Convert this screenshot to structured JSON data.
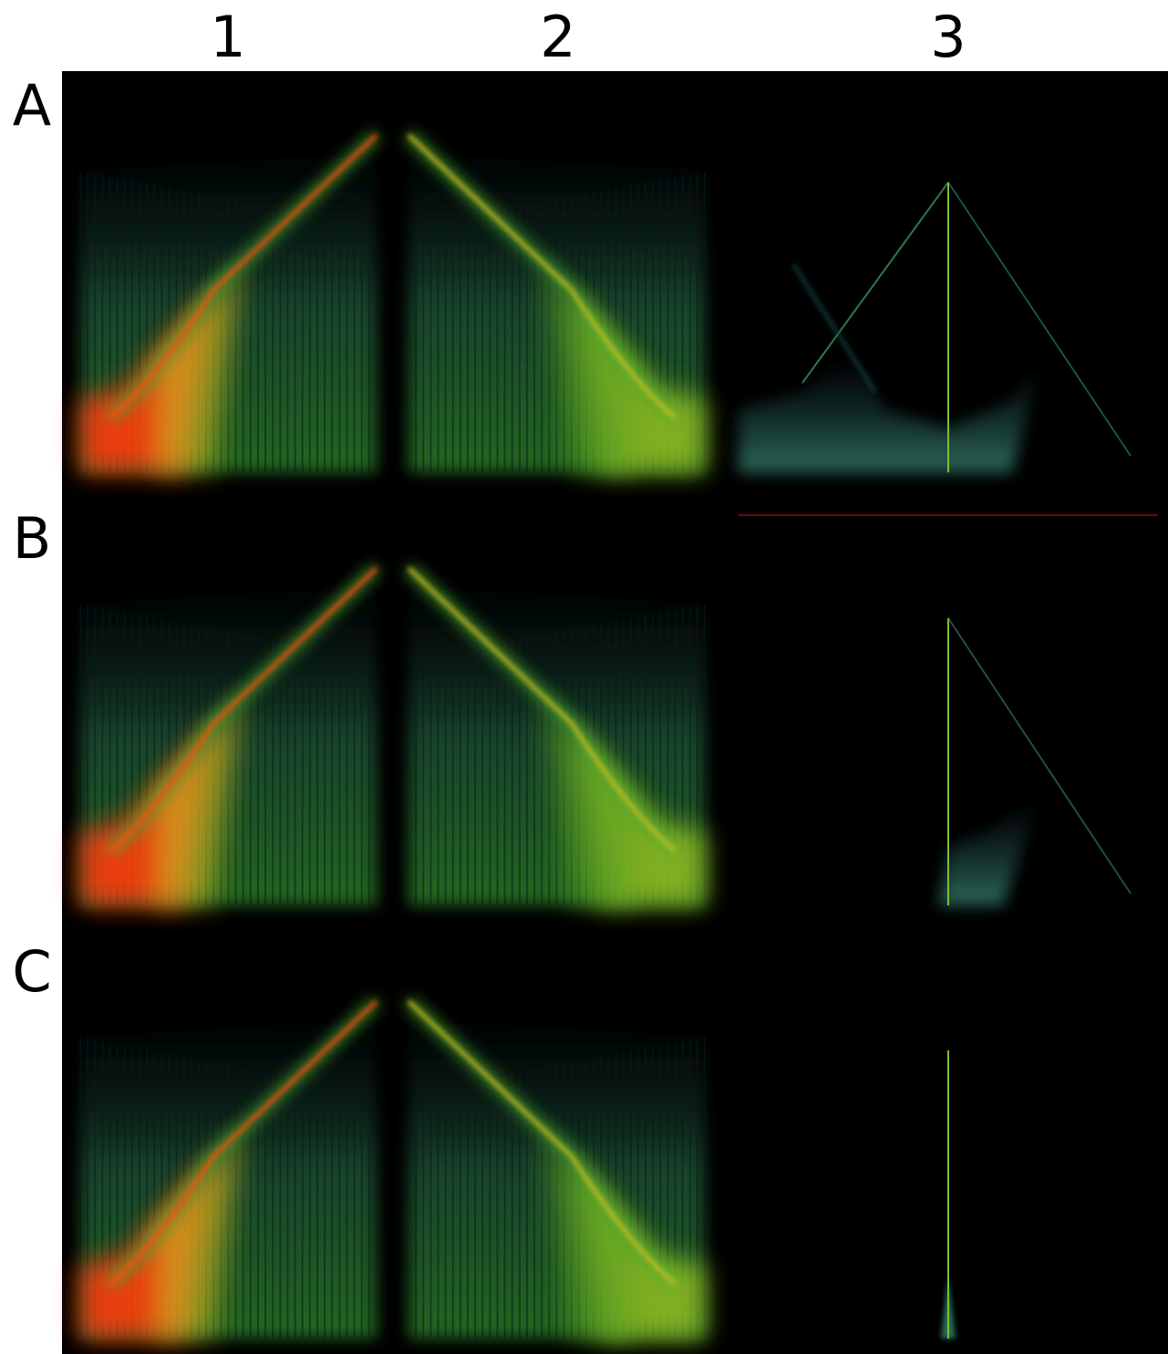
{
  "column_labels": [
    "1",
    "2",
    "3"
  ],
  "row_labels": [
    "A",
    "B",
    "C"
  ]
}
